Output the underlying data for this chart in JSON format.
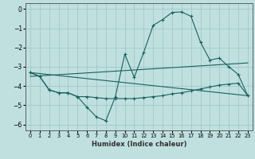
{
  "xlabel": "Humidex (Indice chaleur)",
  "bg_color": "#c0e0e0",
  "grid_color": "#a0c8c8",
  "line_color": "#1a6060",
  "xlim": [
    -0.5,
    23.5
  ],
  "ylim": [
    -6.3,
    0.3
  ],
  "xticks": [
    0,
    1,
    2,
    3,
    4,
    5,
    6,
    7,
    8,
    9,
    10,
    11,
    12,
    13,
    14,
    15,
    16,
    17,
    18,
    19,
    20,
    21,
    22,
    23
  ],
  "yticks": [
    0,
    -1,
    -2,
    -3,
    -4,
    -5,
    -6
  ],
  "line1_x": [
    0,
    1,
    2,
    3,
    4,
    5,
    6,
    7,
    8,
    9,
    10,
    11,
    12,
    13,
    14,
    15,
    16,
    17,
    18,
    19,
    20,
    21,
    22,
    23
  ],
  "line1_y": [
    -3.3,
    -3.5,
    -4.2,
    -4.35,
    -4.35,
    -4.55,
    -5.1,
    -5.6,
    -5.8,
    -4.55,
    -2.35,
    -3.55,
    -2.25,
    -0.85,
    -0.55,
    -0.18,
    -0.15,
    -0.38,
    -1.72,
    -2.65,
    -2.55,
    -3.0,
    -3.4,
    -4.5
  ],
  "line2_x": [
    0,
    1,
    2,
    3,
    4,
    5,
    6,
    7,
    8,
    9,
    10,
    11,
    12,
    13,
    14,
    15,
    16,
    17,
    18,
    19,
    20,
    21,
    22,
    23
  ],
  "line2_y": [
    -3.3,
    -3.5,
    -4.2,
    -4.35,
    -4.35,
    -4.55,
    -4.55,
    -4.6,
    -4.65,
    -4.65,
    -4.65,
    -4.65,
    -4.6,
    -4.55,
    -4.5,
    -4.4,
    -4.35,
    -4.25,
    -4.15,
    -4.05,
    -3.95,
    -3.9,
    -3.85,
    -4.5
  ],
  "line3_x": [
    0,
    23
  ],
  "line3_y": [
    -3.3,
    -4.5
  ],
  "line4_x": [
    0,
    23
  ],
  "line4_y": [
    -3.5,
    -2.8
  ]
}
